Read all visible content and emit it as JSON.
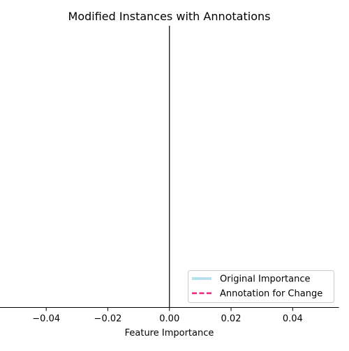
{
  "chart_data": {
    "type": "line",
    "title": "Modified Instances with Annotations",
    "xlabel": "Feature Importance",
    "ylabel": "",
    "xlim": [
      -0.055,
      0.055
    ],
    "xticks": [
      -0.04,
      -0.02,
      0.0,
      0.02,
      0.04
    ],
    "xtick_labels": [
      "−0.04",
      "−0.02",
      "0.00",
      "0.02",
      "0.04"
    ],
    "vline_x": 0,
    "grid": false,
    "legend_position": "lower-right",
    "legend": [
      {
        "label": "Original Importance",
        "color": "#b7e1ef",
        "style": "solid"
      },
      {
        "label": "Annotation for Change",
        "color": "#f0207a",
        "style": "dashed"
      }
    ],
    "series": []
  }
}
